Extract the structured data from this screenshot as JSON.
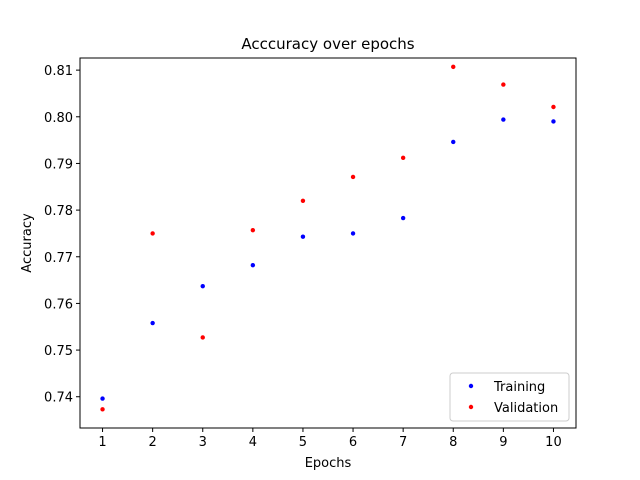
{
  "chart_data": {
    "type": "scatter",
    "title": "Acccuracy over epochs",
    "xlabel": "Epochs",
    "ylabel": "Accuracy",
    "x": [
      1,
      2,
      3,
      4,
      5,
      6,
      7,
      8,
      9,
      10
    ],
    "xticks": [
      "1",
      "2",
      "3",
      "4",
      "5",
      "6",
      "7",
      "8",
      "9",
      "10"
    ],
    "yticks": [
      "0.74",
      "0.75",
      "0.76",
      "0.77",
      "0.78",
      "0.79",
      "0.80",
      "0.81"
    ],
    "xlim": [
      0.55,
      10.45
    ],
    "ylim": [
      0.7333,
      0.8126
    ],
    "grid": false,
    "legend_position": "lower right",
    "series": [
      {
        "name": "Training",
        "color": "#0000ff",
        "values": [
          0.7396,
          0.7558,
          0.7637,
          0.7682,
          0.7743,
          0.775,
          0.7783,
          0.7946,
          0.7994,
          0.799
        ]
      },
      {
        "name": "Validation",
        "color": "#ff0000",
        "values": [
          0.7373,
          0.775,
          0.7527,
          0.7757,
          0.782,
          0.7871,
          0.7912,
          0.8107,
          0.8069,
          0.8021
        ]
      }
    ]
  }
}
